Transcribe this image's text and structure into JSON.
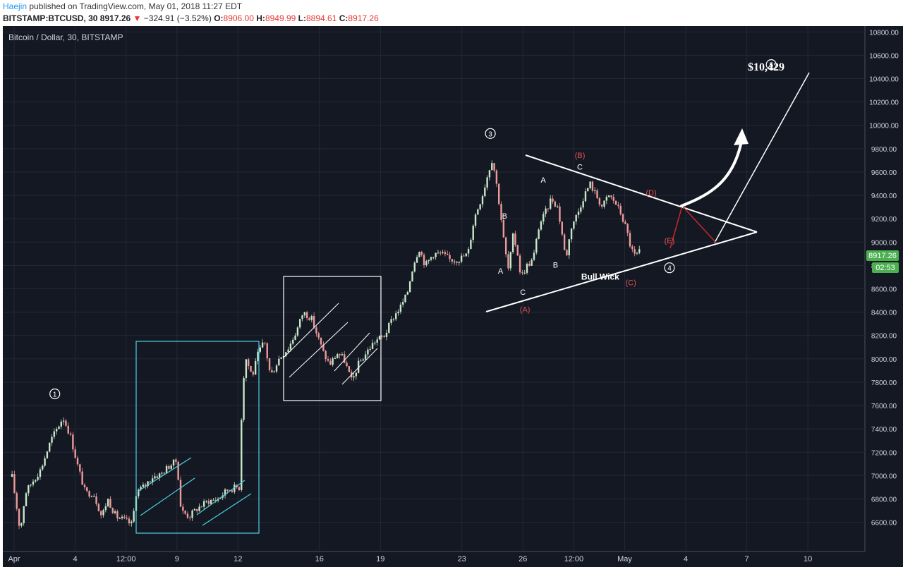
{
  "header": {
    "author": "Haejin",
    "published_text": " published on TradingView.com, May 01, 2018 11:27 EDT",
    "symbol": "BITSTAMP:BTCUSD, 30",
    "last": "8917.26",
    "change_arrow": "▼",
    "change": "−324.91 (−3.52%)",
    "o_label": "O:",
    "o": "8906.00",
    "h_label": "H:",
    "h": "8949.99",
    "l_label": "L:",
    "l": "8894.61",
    "c_label": "C:",
    "c": "8917.26"
  },
  "chart_data": {
    "type": "candlestick",
    "title": "Bitcoin / Dollar, 30, BITSTAMP",
    "ylim": [
      6350,
      10850
    ],
    "y_ticks": [
      "6600.00",
      "6800.00",
      "7000.00",
      "7200.00",
      "7400.00",
      "7600.00",
      "7800.00",
      "8000.00",
      "8200.00",
      "8400.00",
      "8600.00",
      "8800.00",
      "9000.00",
      "9200.00",
      "9400.00",
      "9600.00",
      "9800.00",
      "10000.00",
      "10200.00",
      "10400.00",
      "10600.00",
      "10800.00"
    ],
    "x_ticks": [
      {
        "label": "Apr",
        "day": 1
      },
      {
        "label": "4",
        "day": 4
      },
      {
        "label": "12:00",
        "day": 6.5
      },
      {
        "label": "9",
        "day": 9
      },
      {
        "label": "12",
        "day": 12
      },
      {
        "label": "16",
        "day": 16
      },
      {
        "label": "19",
        "day": 19
      },
      {
        "label": "23",
        "day": 23
      },
      {
        "label": "26",
        "day": 26
      },
      {
        "label": "12:00",
        "day": 28.5
      },
      {
        "label": "May",
        "day": 31
      },
      {
        "label": "4",
        "day": 34
      },
      {
        "label": "7",
        "day": 37
      },
      {
        "label": "10",
        "day": 40
      }
    ],
    "price_path": [
      [
        0.9,
        6990
      ],
      [
        1.15,
        6700
      ],
      [
        1.3,
        6520
      ],
      [
        1.55,
        6850
      ],
      [
        1.9,
        6950
      ],
      [
        2.3,
        7050
      ],
      [
        2.8,
        7300
      ],
      [
        3.4,
        7500
      ],
      [
        3.75,
        7350
      ],
      [
        4.1,
        7100
      ],
      [
        4.5,
        6850
      ],
      [
        4.9,
        6850
      ],
      [
        5.3,
        6650
      ],
      [
        5.6,
        6800
      ],
      [
        6.0,
        6650
      ],
      [
        6.4,
        6620
      ],
      [
        6.8,
        6580
      ],
      [
        7.0,
        6860
      ],
      [
        7.4,
        6910
      ],
      [
        7.8,
        6990
      ],
      [
        8.2,
        7010
      ],
      [
        8.6,
        7080
      ],
      [
        9.0,
        7130
      ],
      [
        9.2,
        6700
      ],
      [
        9.6,
        6650
      ],
      [
        10.0,
        6720
      ],
      [
        10.5,
        6780
      ],
      [
        11.0,
        6800
      ],
      [
        11.5,
        6880
      ],
      [
        11.9,
        6900
      ],
      [
        12.1,
        6900
      ],
      [
        12.2,
        7750
      ],
      [
        12.4,
        8000
      ],
      [
        12.7,
        7850
      ],
      [
        13.0,
        8050
      ],
      [
        13.3,
        8150
      ],
      [
        13.6,
        7850
      ],
      [
        14.0,
        8000
      ],
      [
        14.5,
        8100
      ],
      [
        14.9,
        8250
      ],
      [
        15.2,
        8400
      ],
      [
        15.6,
        8350
      ],
      [
        15.9,
        8200
      ],
      [
        16.2,
        8050
      ],
      [
        16.5,
        7950
      ],
      [
        16.9,
        8050
      ],
      [
        17.2,
        8000
      ],
      [
        17.6,
        7800
      ],
      [
        17.9,
        7950
      ],
      [
        18.3,
        8050
      ],
      [
        18.7,
        8150
      ],
      [
        19.2,
        8200
      ],
      [
        19.6,
        8350
      ],
      [
        20.0,
        8450
      ],
      [
        20.3,
        8550
      ],
      [
        20.6,
        8800
      ],
      [
        20.9,
        8950
      ],
      [
        21.2,
        8800
      ],
      [
        21.6,
        8900
      ],
      [
        22.0,
        8900
      ],
      [
        22.4,
        8850
      ],
      [
        22.8,
        8850
      ],
      [
        23.3,
        8900
      ],
      [
        23.6,
        9200
      ],
      [
        24.0,
        9400
      ],
      [
        24.3,
        9600
      ],
      [
        24.5,
        9720
      ],
      [
        24.7,
        9500
      ],
      [
        24.9,
        9250
      ],
      [
        25.1,
        8950
      ],
      [
        25.3,
        8750
      ],
      [
        25.5,
        9050
      ],
      [
        25.7,
        8950
      ],
      [
        25.9,
        8700
      ],
      [
        26.2,
        8800
      ],
      [
        26.5,
        8850
      ],
      [
        26.8,
        9150
      ],
      [
        27.1,
        9250
      ],
      [
        27.4,
        9380
      ],
      [
        27.7,
        9300
      ],
      [
        27.9,
        9100
      ],
      [
        28.1,
        8850
      ],
      [
        28.4,
        9150
      ],
      [
        28.7,
        9250
      ],
      [
        29.0,
        9400
      ],
      [
        29.3,
        9500
      ],
      [
        29.6,
        9400
      ],
      [
        29.9,
        9300
      ],
      [
        30.2,
        9400
      ],
      [
        30.5,
        9350
      ],
      [
        30.8,
        9250
      ],
      [
        31.1,
        9100
      ],
      [
        31.3,
        8950
      ],
      [
        31.5,
        8880
      ],
      [
        31.75,
        8917
      ]
    ],
    "last_price_label": "8917.26",
    "countdown_label": "02:53",
    "annotations": {
      "target_label": "$10,429",
      "wave_labels": [
        {
          "text": "1",
          "day": 3.0,
          "price": 7700,
          "color": "#ffffff"
        },
        {
          "text": "3",
          "day": 24.4,
          "price": 9930,
          "color": "#ffffff"
        },
        {
          "text": "4",
          "day": 33.2,
          "price": 8780,
          "color": "#ffffff"
        },
        {
          "text": "5",
          "day": 38.2,
          "price": 10520,
          "color": "#ffffff"
        }
      ],
      "letter_labels": [
        {
          "text": "A",
          "day": 27.0,
          "price": 9510,
          "color": "#ffffff"
        },
        {
          "text": "B",
          "day": 25.1,
          "price": 9200,
          "color": "#ffffff"
        },
        {
          "text": "A",
          "day": 24.9,
          "price": 8730,
          "color": "#ffffff"
        },
        {
          "text": "B",
          "day": 27.6,
          "price": 8780,
          "color": "#ffffff"
        },
        {
          "text": "C",
          "day": 26.0,
          "price": 8550,
          "color": "#ffffff"
        },
        {
          "text": "C",
          "day": 28.8,
          "price": 9620,
          "color": "#ffffff"
        },
        {
          "text": "(B)",
          "day": 28.8,
          "price": 9720,
          "color": "#e05252"
        },
        {
          "text": "(A)",
          "day": 26.1,
          "price": 8400,
          "color": "#e05252"
        },
        {
          "text": "(C)",
          "day": 31.3,
          "price": 8630,
          "color": "#e05252"
        },
        {
          "text": "(D)",
          "day": 32.3,
          "price": 9400,
          "color": "#e05252"
        },
        {
          "text": "(E)",
          "day": 33.2,
          "price": 8990,
          "color": "#e05252"
        }
      ],
      "text_notes": [
        {
          "text": "Bull Wick",
          "day": 29.8,
          "price": 8680,
          "color": "#ffffff"
        }
      ]
    }
  }
}
